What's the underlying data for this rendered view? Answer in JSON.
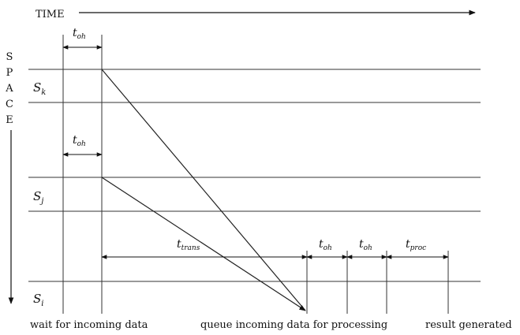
{
  "axes": {
    "time_label": "TIME",
    "space_letters": [
      "S",
      "P",
      "A",
      "C",
      "E"
    ]
  },
  "stations": [
    {
      "name": "S",
      "sub": "k"
    },
    {
      "name": "S",
      "sub": "j"
    },
    {
      "name": "S",
      "sub": "i"
    }
  ],
  "intervals": {
    "toh_top": {
      "base": "t",
      "sub": "oh"
    },
    "toh_mid": {
      "base": "t",
      "sub": "oh"
    },
    "ttrans": {
      "base": "t",
      "sub": "trans"
    },
    "toh_right1": {
      "base": "t",
      "sub": "oh"
    },
    "toh_right2": {
      "base": "t",
      "sub": "oh"
    },
    "tproc": {
      "base": "t",
      "sub": "proc"
    }
  },
  "captions": {
    "wait": "wait for incoming data",
    "queue": "queue incoming data for processing",
    "result": "result generated"
  },
  "colors": {
    "ink": "#111111",
    "line": "#333333",
    "background": "#ffffff"
  }
}
